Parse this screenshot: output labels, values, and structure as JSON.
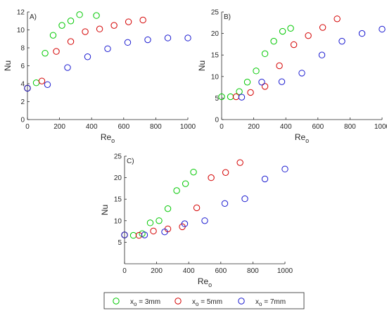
{
  "colors": {
    "x3": "#00c800",
    "x5": "#d40000",
    "x7": "#1a1ad0"
  },
  "legend": {
    "placement": "bottom-center",
    "entries": [
      {
        "key": "x3",
        "prefix": "x",
        "sub": "o",
        "suffix": " = 3mm"
      },
      {
        "key": "x5",
        "prefix": "x",
        "sub": "o",
        "suffix": " = 5mm"
      },
      {
        "key": "x7",
        "prefix": "x",
        "sub": "o",
        "suffix": " = 7mm"
      }
    ]
  },
  "chart_data": [
    {
      "type": "scatter",
      "panel_label": "A)",
      "xlabel": "Re",
      "xlabel_sub": "o",
      "ylabel": "Nu",
      "xlim": [
        0,
        1000
      ],
      "ylim": [
        0,
        12
      ],
      "xticks": [
        0,
        200,
        400,
        600,
        800,
        1000
      ],
      "yticks": [
        0,
        2,
        4,
        6,
        8,
        10,
        12
      ],
      "series": [
        {
          "key": "x3",
          "x": [
            0,
            55,
            110,
            160,
            215,
            270,
            325,
            430
          ],
          "y": [
            3.5,
            4.1,
            7.4,
            9.4,
            10.5,
            11.0,
            11.7,
            11.6
          ]
        },
        {
          "key": "x5",
          "x": [
            0,
            90,
            180,
            270,
            360,
            450,
            540,
            630,
            720
          ],
          "y": [
            3.5,
            4.3,
            7.6,
            8.7,
            9.8,
            10.1,
            10.5,
            10.9,
            11.1
          ]
        },
        {
          "key": "x7",
          "x": [
            0,
            125,
            250,
            375,
            500,
            625,
            750,
            875,
            1000
          ],
          "y": [
            3.5,
            3.9,
            5.8,
            7.0,
            7.9,
            8.6,
            8.9,
            9.1,
            9.1
          ]
        }
      ]
    },
    {
      "type": "scatter",
      "panel_label": "B)",
      "xlabel": "Re",
      "xlabel_sub": "o",
      "ylabel": "Nu",
      "xlim": [
        0,
        1000
      ],
      "ylim": [
        0,
        25
      ],
      "xticks": [
        0,
        200,
        400,
        600,
        800,
        1000
      ],
      "yticks": [
        0,
        5,
        10,
        15,
        20,
        25
      ],
      "series": [
        {
          "key": "x3",
          "x": [
            0,
            55,
            110,
            160,
            215,
            270,
            325,
            380,
            430
          ],
          "y": [
            5.3,
            5.3,
            6.5,
            8.7,
            11.3,
            15.3,
            18.2,
            20.5,
            21.2
          ]
        },
        {
          "key": "x5",
          "x": [
            90,
            180,
            270,
            360,
            450,
            540,
            630,
            720
          ],
          "y": [
            5.3,
            6.3,
            7.7,
            12.5,
            17.4,
            19.5,
            21.4,
            23.4
          ]
        },
        {
          "key": "x7",
          "x": [
            125,
            250,
            375,
            500,
            625,
            750,
            875,
            1000
          ],
          "y": [
            5.2,
            8.7,
            8.8,
            10.8,
            15.0,
            18.2,
            20.0,
            21.0
          ]
        }
      ]
    },
    {
      "type": "scatter",
      "panel_label": "C)",
      "xlabel": "Re",
      "xlabel_sub": "o",
      "ylabel": "Nu",
      "xlim": [
        0,
        1000
      ],
      "ylim": [
        0,
        25
      ],
      "xticks": [
        0,
        200,
        400,
        600,
        800,
        1000
      ],
      "yticks": [
        5,
        10,
        15,
        20,
        25
      ],
      "series": [
        {
          "key": "x3",
          "x": [
            0,
            55,
            110,
            160,
            215,
            270,
            325,
            380,
            430
          ],
          "y": [
            6.7,
            6.6,
            7.0,
            9.5,
            10.0,
            12.8,
            17.0,
            18.6,
            21.3
          ]
        },
        {
          "key": "x5",
          "x": [
            0,
            90,
            180,
            270,
            360,
            450,
            540,
            630,
            720
          ],
          "y": [
            6.7,
            6.6,
            7.6,
            8.1,
            8.6,
            13.0,
            20.0,
            21.2,
            23.5
          ]
        },
        {
          "key": "x7",
          "x": [
            0,
            125,
            250,
            375,
            500,
            625,
            750,
            875,
            1000
          ],
          "y": [
            6.7,
            6.7,
            7.4,
            9.3,
            10.0,
            14.0,
            15.1,
            19.7,
            22.0
          ]
        }
      ]
    }
  ]
}
